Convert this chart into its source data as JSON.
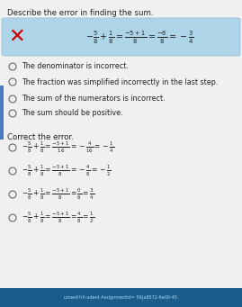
{
  "title": "Describe the error in finding the sum.",
  "box_equation": "$-\\frac{5}{8}+\\frac{1}{8}=\\frac{-5+1}{8}=\\frac{-6}{8}=-\\frac{3}{4}$",
  "radio_options": [
    "The denominator is incorrect.",
    "The fraction was simplified incorrectly in the last step.",
    "The sum of the numerators is incorrect.",
    "The sum should be positive."
  ],
  "correct_label": "Correct the error.",
  "correct_options": [
    "$-\\frac{5}{8}+\\frac{1}{8}=\\frac{-5+1}{16}=-\\frac{4}{16}=-\\frac{1}{4}$",
    "$-\\frac{5}{8}+\\frac{1}{8}=\\frac{-5+1}{8}=-\\frac{4}{8}=-\\frac{1}{2}$",
    "$-\\frac{5}{8}+\\frac{1}{8}=\\frac{-5+1}{8}=\\frac{0}{8}=\\frac{3}{4}$",
    "$-\\frac{5}{8}+\\frac{1}{8}=\\frac{-5+1}{8}=\\frac{4}{8}=\\frac{1}{2}$"
  ],
  "bg_color": "#f0f0f0",
  "box_bg": "#aed4e8",
  "box_border": "#90bcd8",
  "x_color": "#cc0000",
  "text_color": "#222222",
  "radio_color": "#666666",
  "accent_color": "#4a7abf",
  "bottom_bar_color": "#1a5c8a",
  "bottom_text_color": "#aaddff",
  "bottom_text": "ument?rh udent Assignmentid= 56|a8572-6e00-45"
}
